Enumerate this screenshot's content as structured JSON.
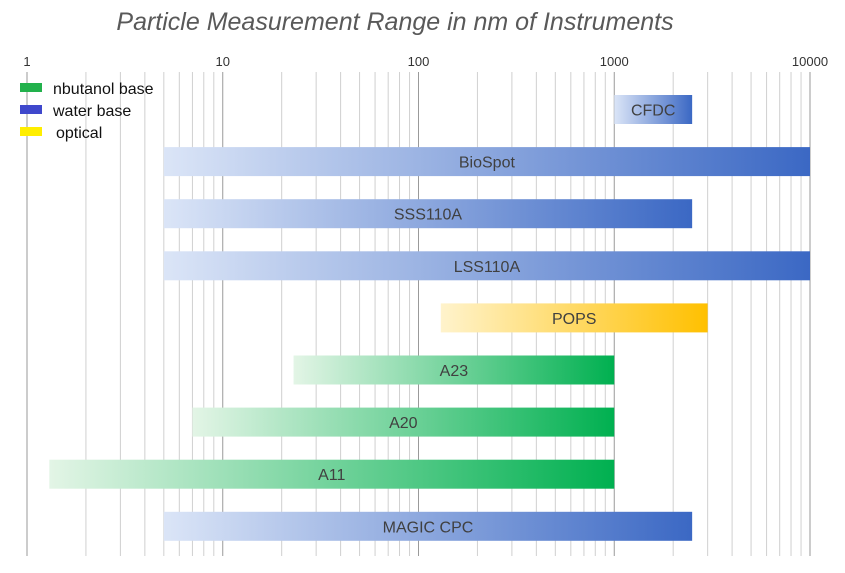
{
  "chart_data": {
    "type": "bar",
    "orientation": "horizontal-range",
    "title": "Particle Measurement Range in nm of Instruments",
    "x_scale": "log",
    "x_range": [
      1,
      10000
    ],
    "x_ticks": [
      "1",
      "10",
      "100",
      "1000",
      "10000"
    ],
    "x_tick_values": [
      1,
      10,
      100,
      1000,
      10000
    ],
    "legend_placement": "top-left",
    "legend": [
      {
        "name": "nbutanol base",
        "color": "#22b14c"
      },
      {
        "name": "water base",
        "color": "#3f48cc"
      },
      {
        "name": "optical",
        "color": "#ffee00"
      }
    ],
    "bars": [
      {
        "name": "CFDC",
        "min": 1000,
        "max": 2500,
        "category": "water base",
        "color_light": "#dbe5f7",
        "color_dark": "#3b68c4"
      },
      {
        "name": "BioSpot",
        "min": 5,
        "max": 10000,
        "category": "water base",
        "color_light": "#dbe5f7",
        "color_dark": "#3b68c4"
      },
      {
        "name": "SSS110A",
        "min": 5,
        "max": 2500,
        "category": "water base",
        "color_light": "#dbe5f7",
        "color_dark": "#3b68c4"
      },
      {
        "name": "LSS110A",
        "min": 5,
        "max": 10000,
        "category": "water base",
        "color_light": "#dbe5f7",
        "color_dark": "#3b68c4"
      },
      {
        "name": "POPS",
        "min": 130,
        "max": 3000,
        "category": "optical",
        "color_light": "#fff3cc",
        "color_dark": "#ffc000"
      },
      {
        "name": "A23",
        "min": 23,
        "max": 1000,
        "category": "nbutanol base",
        "color_light": "#e3f5e6",
        "color_dark": "#00b050"
      },
      {
        "name": "A20",
        "min": 7,
        "max": 1000,
        "category": "nbutanol base",
        "color_light": "#e3f5e6",
        "color_dark": "#00b050"
      },
      {
        "name": "A11",
        "min": 1.3,
        "max": 1000,
        "category": "nbutanol base",
        "color_light": "#e3f5e6",
        "color_dark": "#00b050"
      },
      {
        "name": "MAGIC CPC",
        "min": 5,
        "max": 2500,
        "category": "water base",
        "color_light": "#dbe5f7",
        "color_dark": "#3b68c4"
      }
    ],
    "grid": true
  }
}
